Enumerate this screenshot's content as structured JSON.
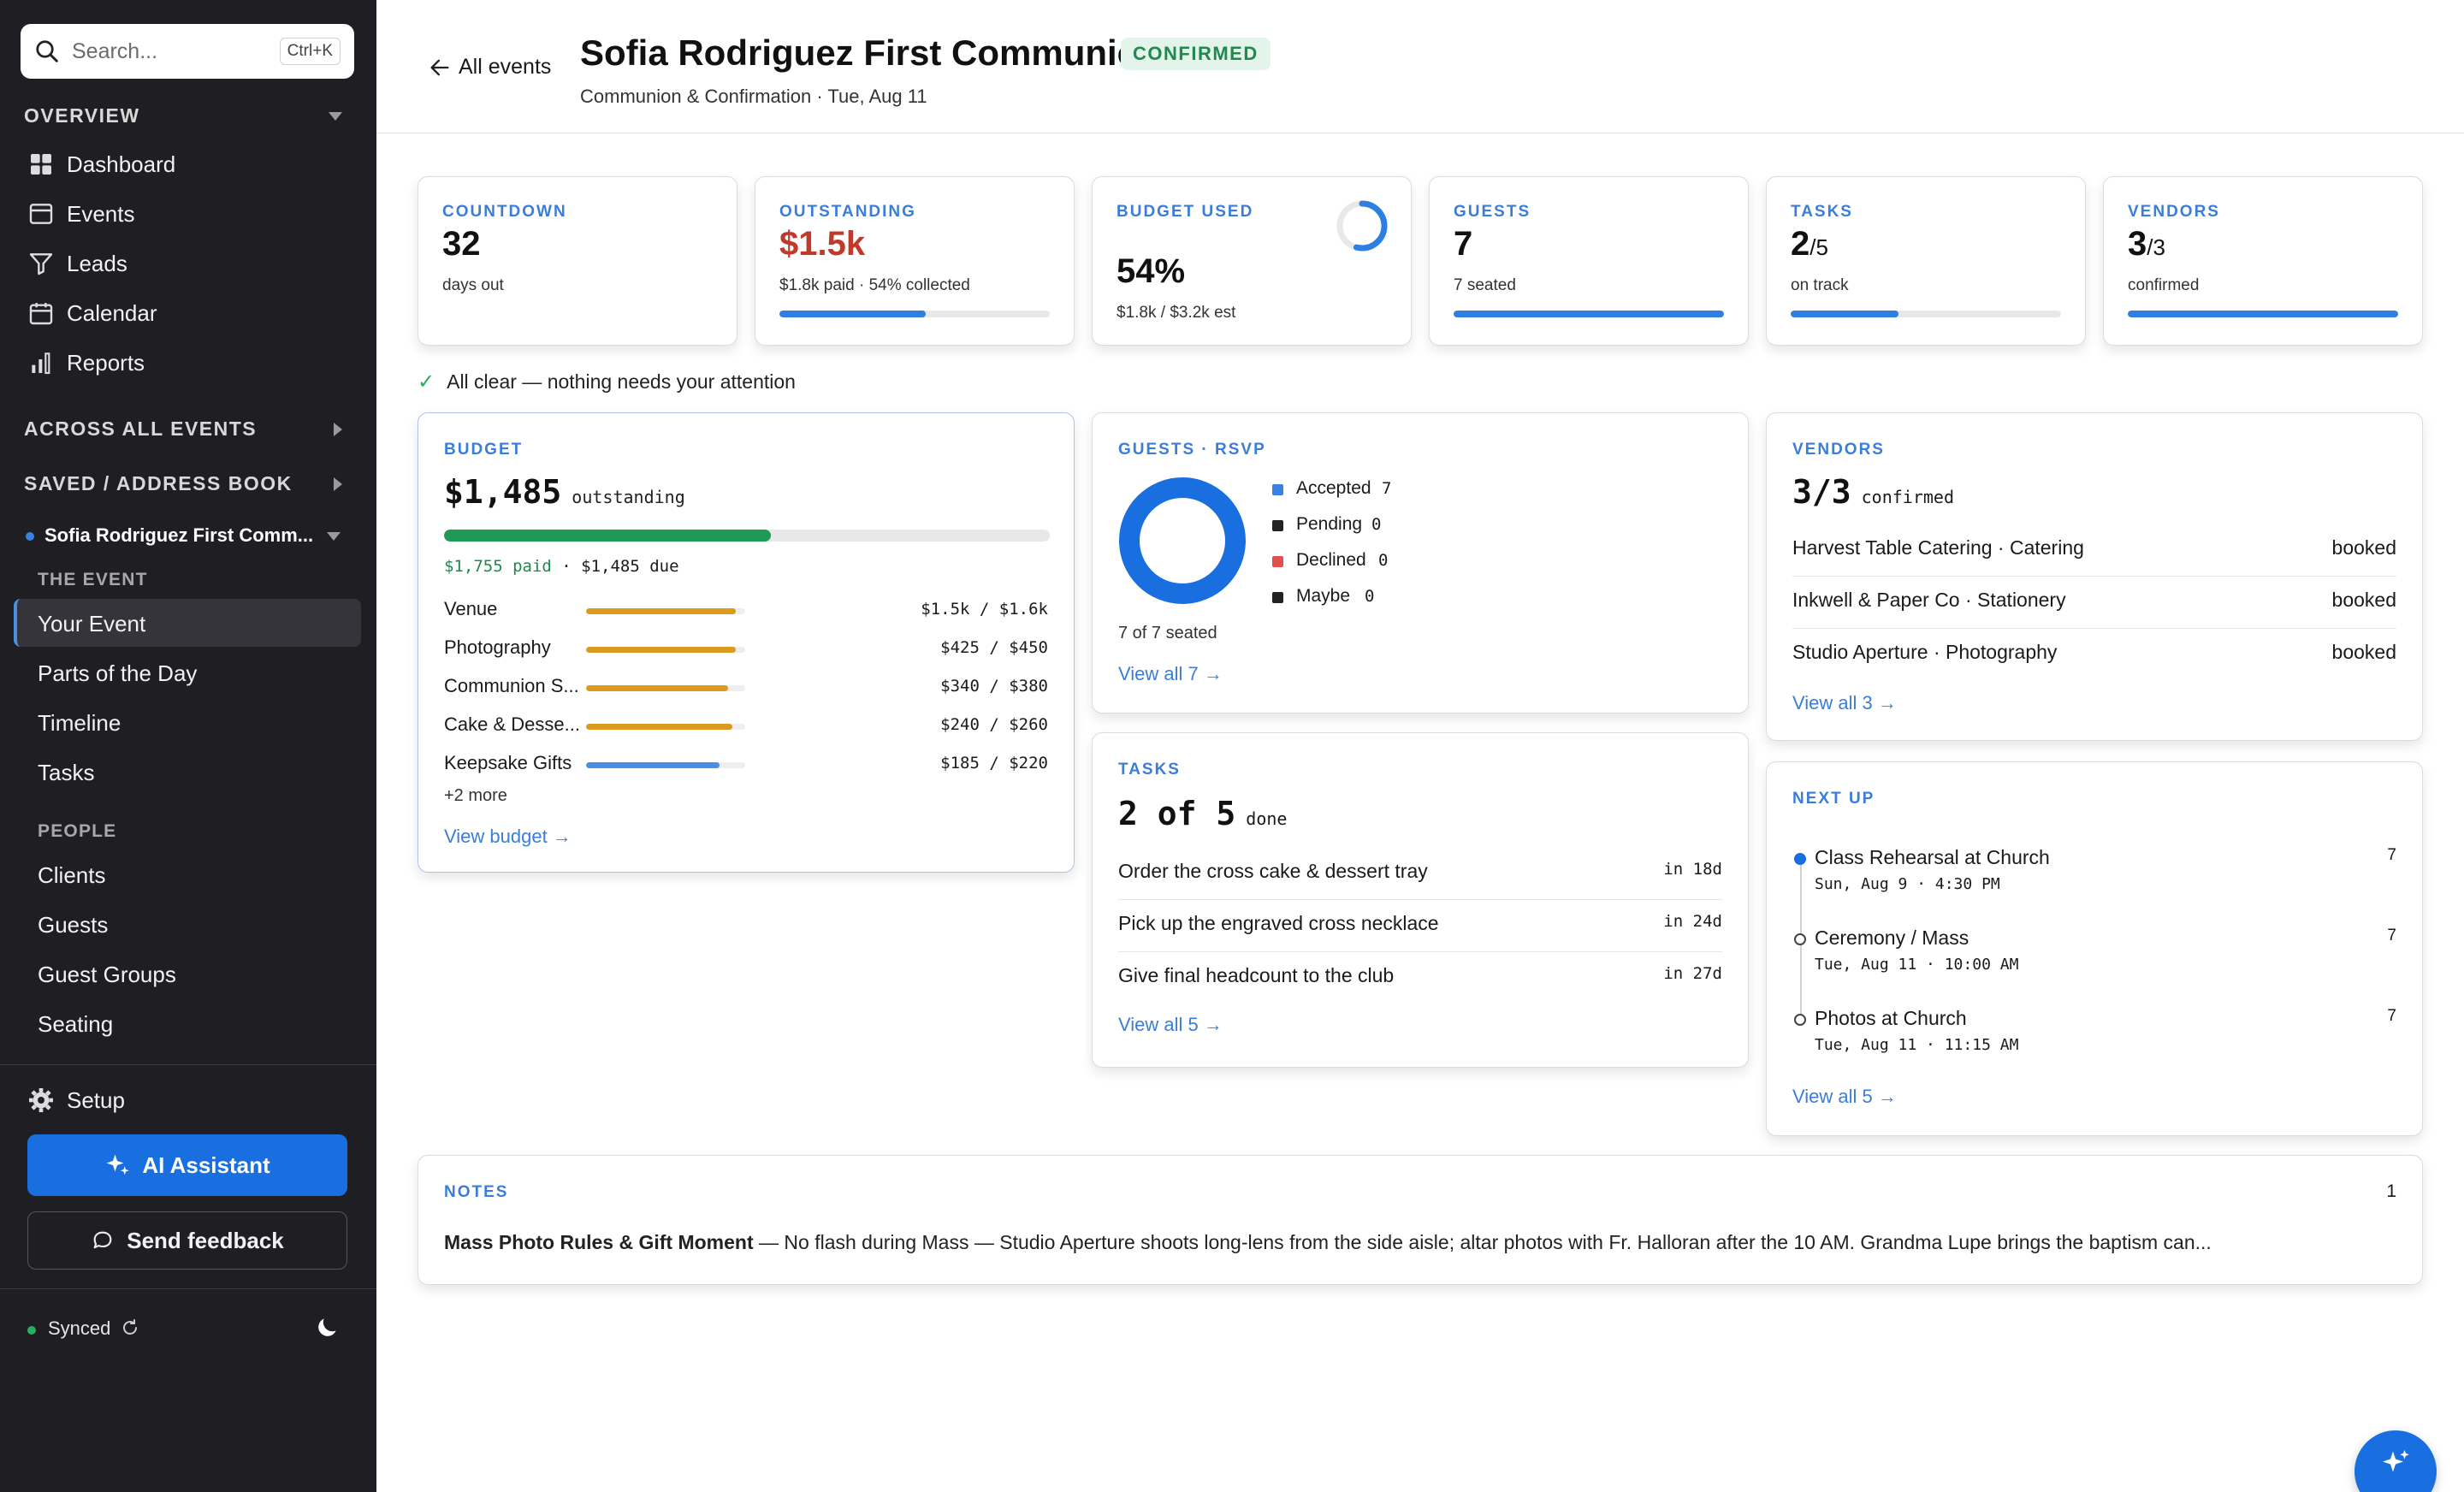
{
  "search": {
    "placeholder": "Search...",
    "shortcut": "Ctrl+K"
  },
  "sidebar": {
    "overview_label": "OVERVIEW",
    "nav": [
      {
        "label": "Dashboard",
        "icon": "dashboard-icon"
      },
      {
        "label": "Events",
        "icon": "events-icon"
      },
      {
        "label": "Leads",
        "icon": "filter-icon"
      },
      {
        "label": "Calendar",
        "icon": "calendar-icon"
      },
      {
        "label": "Reports",
        "icon": "reports-icon"
      }
    ],
    "across_label": "ACROSS ALL EVENTS",
    "saved_label": "SAVED / ADDRESS BOOK",
    "event_name": "Sofia Rodriguez First Comm...",
    "the_event_label": "THE EVENT",
    "event_items": [
      "Your Event",
      "Parts of the Day",
      "Timeline",
      "Tasks"
    ],
    "people_label": "PEOPLE",
    "people_items": [
      "Clients",
      "Guests",
      "Guest Groups",
      "Seating"
    ],
    "setup_label": "Setup",
    "ai_label": "AI Assistant",
    "feedback_label": "Send feedback",
    "synced_label": "Synced"
  },
  "header": {
    "back_label": "All events",
    "title": "Sofia Rodriguez First Communion",
    "status": "CONFIRMED",
    "subtitle": "Communion & Confirmation · Tue, Aug 11"
  },
  "stats": {
    "countdown": {
      "label": "COUNTDOWN",
      "value": "32",
      "sub": "days out"
    },
    "outstanding": {
      "label": "OUTSTANDING",
      "value": "$1.5k",
      "sub": "$1.8k paid · 54% collected",
      "progress": 54
    },
    "budget": {
      "label": "BUDGET USED",
      "value": "54%",
      "sub": "$1.8k / $3.2k est",
      "progress": 54
    },
    "guests": {
      "label": "GUESTS",
      "value": "7",
      "sub": "7 seated",
      "progress": 100
    },
    "tasks": {
      "label": "TASKS",
      "value": "2",
      "total": "/5",
      "sub": "on track",
      "progress": 40
    },
    "vendors": {
      "label": "VENDORS",
      "value": "3",
      "total": "/3",
      "sub": "confirmed",
      "progress": 100
    }
  },
  "alert": "All clear — nothing needs your attention",
  "budget_card": {
    "label": "BUDGET",
    "amount": "$1,485",
    "amount_suffix": "outstanding",
    "paid": "$1,755 paid",
    "due": " · $1,485 due",
    "paid_fraction": 0.54,
    "items": [
      {
        "name": "Venue",
        "amount": "$1.5k / $1.6k",
        "fraction": 0.94,
        "color": "#d99a1e"
      },
      {
        "name": "Photography",
        "amount": "$425 / $450",
        "fraction": 0.94,
        "color": "#d99a1e"
      },
      {
        "name": "Communion S...",
        "amount": "$340 / $380",
        "fraction": 0.89,
        "color": "#d99a1e"
      },
      {
        "name": "Cake & Desse...",
        "amount": "$240 / $260",
        "fraction": 0.92,
        "color": "#d99a1e"
      },
      {
        "name": "Keepsake Gifts",
        "amount": "$185 / $220",
        "fraction": 0.84,
        "color": "#4a90e2"
      }
    ],
    "more": "+2 more",
    "link": "View budget →"
  },
  "guests_card": {
    "label": "GUESTS · RSVP",
    "legend": [
      {
        "name": "Accepted",
        "count": "7",
        "color": "#3b82e0"
      },
      {
        "name": "Pending",
        "count": "0",
        "color": "#222222"
      },
      {
        "name": "Declined",
        "count": "0",
        "color": "#e05050"
      },
      {
        "name": "Maybe",
        "count": "0",
        "color": "#222222"
      }
    ],
    "seated": "7 of 7 seated",
    "link": "View all 7 →"
  },
  "vendors_card": {
    "label": "VENDORS",
    "count": "3/3",
    "count_suffix": "confirmed",
    "items": [
      {
        "name": "Harvest Table Catering · Catering",
        "status": "booked"
      },
      {
        "name": "Inkwell & Paper Co · Stationery",
        "status": "booked"
      },
      {
        "name": "Studio Aperture · Photography",
        "status": "booked"
      }
    ],
    "link": "View all 3 →"
  },
  "tasks_card": {
    "label": "TASKS",
    "count": "2 of 5",
    "count_suffix": "done",
    "items": [
      {
        "name": "Order the cross cake & dessert tray",
        "due": "in 18d"
      },
      {
        "name": "Pick up the engraved cross necklace",
        "due": "in 24d"
      },
      {
        "name": "Give final headcount to the club",
        "due": "in 27d"
      }
    ],
    "link": "View all 5 →"
  },
  "next_card": {
    "label": "NEXT UP",
    "items": [
      {
        "name": "Class Rehearsal at Church",
        "when": "Sun, Aug 9 · 4:30 PM",
        "count": "7"
      },
      {
        "name": "Ceremony / Mass",
        "when": "Tue, Aug 11 · 10:00 AM",
        "count": "7"
      },
      {
        "name": "Photos at Church",
        "when": "Tue, Aug 11 · 11:15 AM",
        "count": "7"
      }
    ],
    "link": "View all 5 →"
  },
  "notes_card": {
    "label": "NOTES",
    "count": "1",
    "title": "Mass Photo Rules & Gift Moment",
    "body": " — No flash during Mass — Studio Aperture shoots long-lens from the side aisle; altar photos with Fr. Halloran after the 10 AM. Grandma Lupe brings the baptism can..."
  },
  "colors": {
    "accent": "#1a6fe0",
    "confirmed": "#1e8a4c",
    "outstanding": "#c0392b"
  }
}
